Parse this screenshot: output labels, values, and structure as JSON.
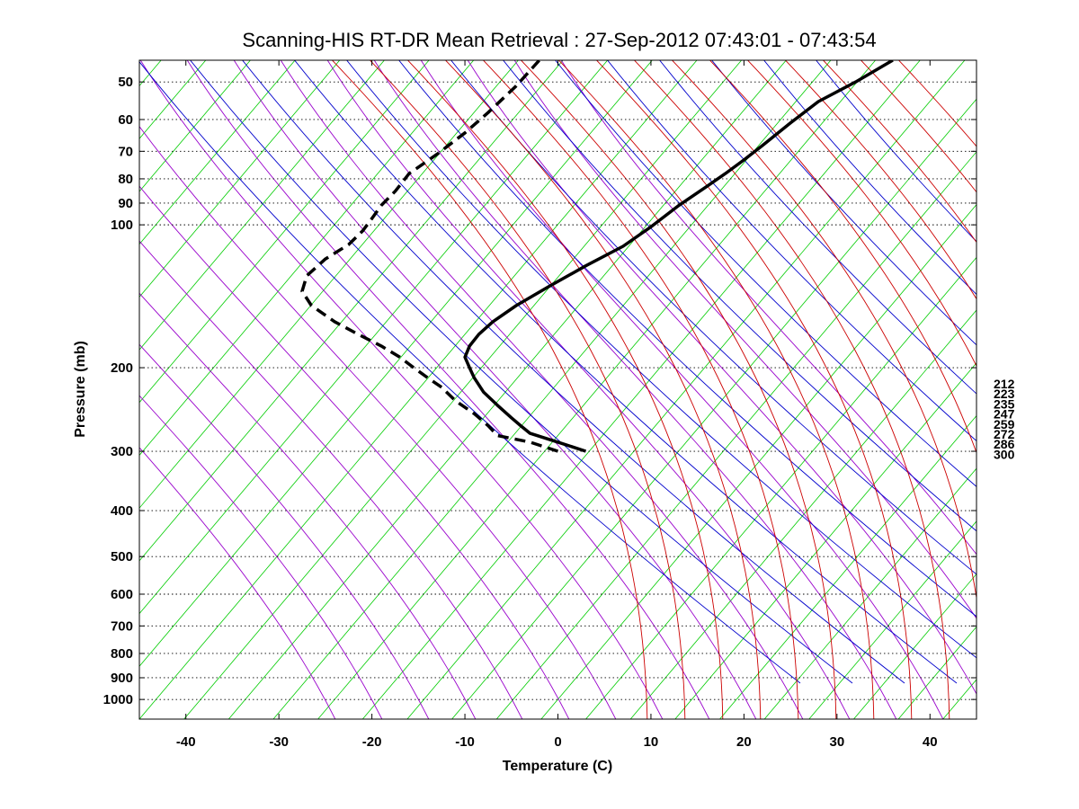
{
  "chart_data": {
    "type": "line",
    "title": "Scanning-HIS RT-DR Mean Retrieval : 27-Sep-2012 07:43:01 - 07:43:54",
    "xlabel": "Temperature (C)",
    "ylabel": "Pressure (mb)",
    "xlim": [
      -45,
      45
    ],
    "ylim": [
      1100,
      45
    ],
    "yscale": "log",
    "x_ticks": [
      -40,
      -30,
      -20,
      -10,
      0,
      10,
      20,
      30,
      40
    ],
    "y_ticks": [
      50,
      60,
      70,
      80,
      90,
      100,
      200,
      300,
      400,
      500,
      600,
      700,
      800,
      900,
      1000
    ],
    "grid": "horizontal dotted at pressure ticks",
    "right_labels": [
      "212",
      "223",
      "235",
      "247",
      "259",
      "272",
      "286",
      "300"
    ],
    "colors": {
      "temperature": "#000000",
      "dewpoint": "#000000",
      "isotherms": "#00cc00",
      "dry_adiabats": "#0000cc",
      "moist_adiabats": "#cc0000",
      "background_isolines": "#9900cc"
    },
    "series": [
      {
        "style": "solid",
        "points": [
          [
            3,
            300
          ],
          [
            0,
            287
          ],
          [
            -3,
            275
          ],
          [
            -4,
            265
          ],
          [
            -5,
            255
          ],
          [
            -6.5,
            240
          ],
          [
            -8,
            225
          ],
          [
            -9,
            210
          ],
          [
            -9.5,
            200
          ],
          [
            -10,
            190
          ],
          [
            -9.5,
            180
          ],
          [
            -8.5,
            170
          ],
          [
            -7,
            160
          ],
          [
            -4.5,
            148
          ],
          [
            -1,
            135
          ],
          [
            3,
            122
          ],
          [
            7,
            111
          ],
          [
            10,
            101
          ],
          [
            13,
            91
          ],
          [
            16,
            83
          ],
          [
            18,
            78
          ],
          [
            20,
            73
          ],
          [
            22,
            68
          ],
          [
            25,
            61
          ],
          [
            28,
            55
          ],
          [
            32,
            50
          ],
          [
            36,
            45
          ]
        ]
      },
      {
        "style": "dashed",
        "points": [
          [
            0,
            300
          ],
          [
            -3,
            287
          ],
          [
            -6.5,
            278
          ],
          [
            -7.5,
            265
          ],
          [
            -9,
            250
          ],
          [
            -11,
            235
          ],
          [
            -12.5,
            220
          ],
          [
            -14,
            210
          ],
          [
            -15.5,
            200
          ],
          [
            -17,
            190
          ],
          [
            -19,
            180
          ],
          [
            -21.5,
            170
          ],
          [
            -24,
            160
          ],
          [
            -26.5,
            148
          ],
          [
            -27.5,
            138
          ],
          [
            -27,
            128
          ],
          [
            -25,
            118
          ],
          [
            -22.5,
            110
          ],
          [
            -21,
            103
          ],
          [
            -20,
            97
          ],
          [
            -19,
            91
          ],
          [
            -17.5,
            85
          ],
          [
            -16,
            78
          ],
          [
            -13,
            71
          ],
          [
            -10,
            64
          ],
          [
            -7.5,
            58
          ],
          [
            -4.5,
            51
          ],
          [
            -2,
            45
          ]
        ]
      }
    ]
  }
}
